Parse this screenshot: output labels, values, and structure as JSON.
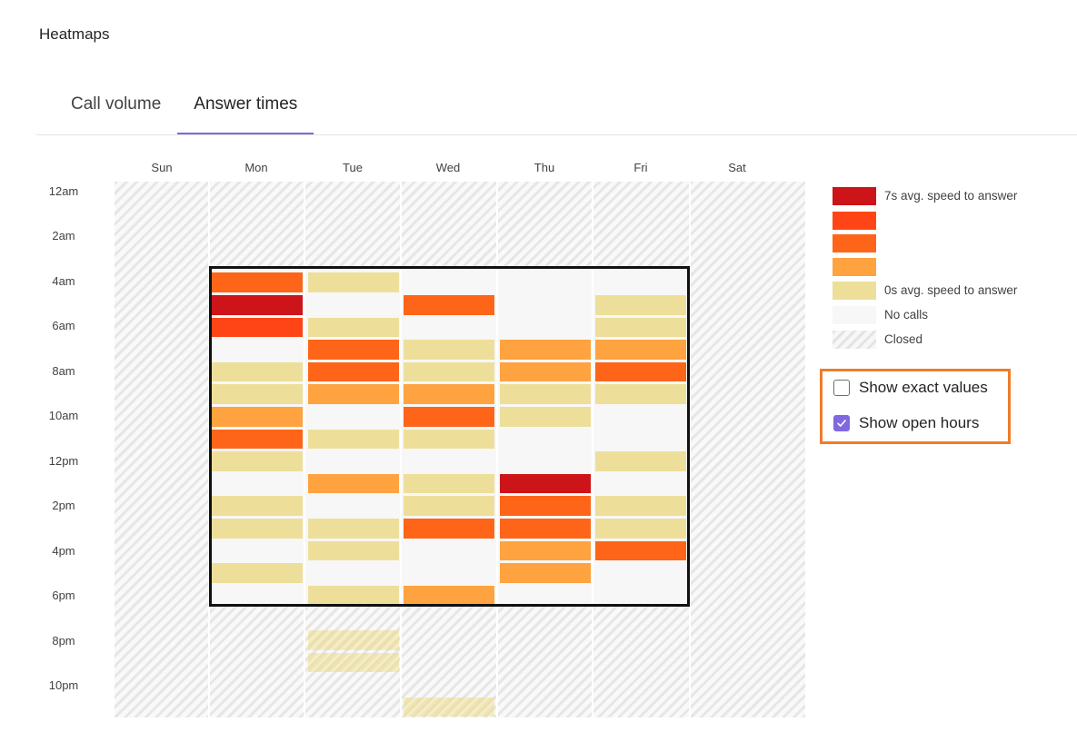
{
  "page": {
    "title": "Heatmaps"
  },
  "tabs": [
    {
      "label": "Call volume",
      "active": false
    },
    {
      "label": "Answer times",
      "active": true
    }
  ],
  "days": [
    "Sun",
    "Mon",
    "Tue",
    "Wed",
    "Thu",
    "Fri",
    "Sat"
  ],
  "time_labels": [
    "12am",
    "2am",
    "4am",
    "6am",
    "8am",
    "10am",
    "12pm",
    "2pm",
    "4pm",
    "6pm",
    "8pm",
    "10pm"
  ],
  "colors": {
    "level_7s": "#cc1419",
    "level_high": "#ff4516",
    "level_mid": "#fe6518",
    "level_low": "#fea33f",
    "level_0s": "#eddf9a",
    "no_calls": "#f7f7f7",
    "accent": "#7f68e0",
    "highlight_border": "#f07c2a"
  },
  "legend": [
    {
      "level": "7s",
      "label": "7s avg. speed to answer",
      "color": "#cc1419"
    },
    {
      "level": "high",
      "label": "",
      "color": "#ff4516"
    },
    {
      "level": "mid",
      "label": "",
      "color": "#fe6518"
    },
    {
      "level": "low",
      "label": "",
      "color": "#fea33f"
    },
    {
      "level": "0s",
      "label": "0s avg. speed to answer",
      "color": "#eddf9a"
    },
    {
      "level": "none",
      "label": "No calls",
      "color": "#f7f7f7"
    },
    {
      "level": "closed",
      "label": "Closed",
      "color": "hatched"
    }
  ],
  "options": {
    "show_exact_values": {
      "label": "Show exact values",
      "checked": false
    },
    "show_open_hours": {
      "label": "Show open hours",
      "checked": true
    }
  },
  "heatmap": {
    "open_hours": {
      "days": [
        "Mon",
        "Tue",
        "Wed",
        "Thu",
        "Fri"
      ],
      "start": "4am",
      "end": "7pm"
    },
    "cells": [
      {
        "day": "Mon",
        "hour": 4,
        "level": "mid"
      },
      {
        "day": "Mon",
        "hour": 5,
        "level": "7s"
      },
      {
        "day": "Mon",
        "hour": 6,
        "level": "high"
      },
      {
        "day": "Mon",
        "hour": 8,
        "level": "0s"
      },
      {
        "day": "Mon",
        "hour": 9,
        "level": "0s"
      },
      {
        "day": "Mon",
        "hour": 10,
        "level": "low"
      },
      {
        "day": "Mon",
        "hour": 11,
        "level": "mid"
      },
      {
        "day": "Mon",
        "hour": 12,
        "level": "0s"
      },
      {
        "day": "Mon",
        "hour": 14,
        "level": "0s"
      },
      {
        "day": "Mon",
        "hour": 15,
        "level": "0s"
      },
      {
        "day": "Mon",
        "hour": 17,
        "level": "0s"
      },
      {
        "day": "Tue",
        "hour": 4,
        "level": "0s"
      },
      {
        "day": "Tue",
        "hour": 6,
        "level": "0s"
      },
      {
        "day": "Tue",
        "hour": 7,
        "level": "mid"
      },
      {
        "day": "Tue",
        "hour": 8,
        "level": "mid"
      },
      {
        "day": "Tue",
        "hour": 9,
        "level": "low"
      },
      {
        "day": "Tue",
        "hour": 11,
        "level": "0s"
      },
      {
        "day": "Tue",
        "hour": 13,
        "level": "low"
      },
      {
        "day": "Tue",
        "hour": 15,
        "level": "0s"
      },
      {
        "day": "Tue",
        "hour": 16,
        "level": "0s"
      },
      {
        "day": "Tue",
        "hour": 18,
        "level": "0s"
      },
      {
        "day": "Tue",
        "hour": 20,
        "level": "0s",
        "closed": true
      },
      {
        "day": "Tue",
        "hour": 21,
        "level": "0s",
        "closed": true
      },
      {
        "day": "Wed",
        "hour": 5,
        "level": "mid"
      },
      {
        "day": "Wed",
        "hour": 7,
        "level": "0s"
      },
      {
        "day": "Wed",
        "hour": 8,
        "level": "0s"
      },
      {
        "day": "Wed",
        "hour": 9,
        "level": "low"
      },
      {
        "day": "Wed",
        "hour": 10,
        "level": "mid"
      },
      {
        "day": "Wed",
        "hour": 11,
        "level": "0s"
      },
      {
        "day": "Wed",
        "hour": 13,
        "level": "0s"
      },
      {
        "day": "Wed",
        "hour": 14,
        "level": "0s"
      },
      {
        "day": "Wed",
        "hour": 15,
        "level": "mid"
      },
      {
        "day": "Wed",
        "hour": 18,
        "level": "low"
      },
      {
        "day": "Wed",
        "hour": 23,
        "level": "0s",
        "closed": true
      },
      {
        "day": "Thu",
        "hour": 7,
        "level": "low"
      },
      {
        "day": "Thu",
        "hour": 8,
        "level": "low"
      },
      {
        "day": "Thu",
        "hour": 9,
        "level": "0s"
      },
      {
        "day": "Thu",
        "hour": 10,
        "level": "0s"
      },
      {
        "day": "Thu",
        "hour": 13,
        "level": "7s"
      },
      {
        "day": "Thu",
        "hour": 14,
        "level": "mid"
      },
      {
        "day": "Thu",
        "hour": 15,
        "level": "mid"
      },
      {
        "day": "Thu",
        "hour": 16,
        "level": "low"
      },
      {
        "day": "Thu",
        "hour": 17,
        "level": "low"
      },
      {
        "day": "Fri",
        "hour": 5,
        "level": "0s"
      },
      {
        "day": "Fri",
        "hour": 6,
        "level": "0s"
      },
      {
        "day": "Fri",
        "hour": 7,
        "level": "low"
      },
      {
        "day": "Fri",
        "hour": 8,
        "level": "mid"
      },
      {
        "day": "Fri",
        "hour": 9,
        "level": "0s"
      },
      {
        "day": "Fri",
        "hour": 12,
        "level": "0s"
      },
      {
        "day": "Fri",
        "hour": 14,
        "level": "0s"
      },
      {
        "day": "Fri",
        "hour": 15,
        "level": "0s"
      },
      {
        "day": "Fri",
        "hour": 16,
        "level": "mid"
      }
    ]
  }
}
